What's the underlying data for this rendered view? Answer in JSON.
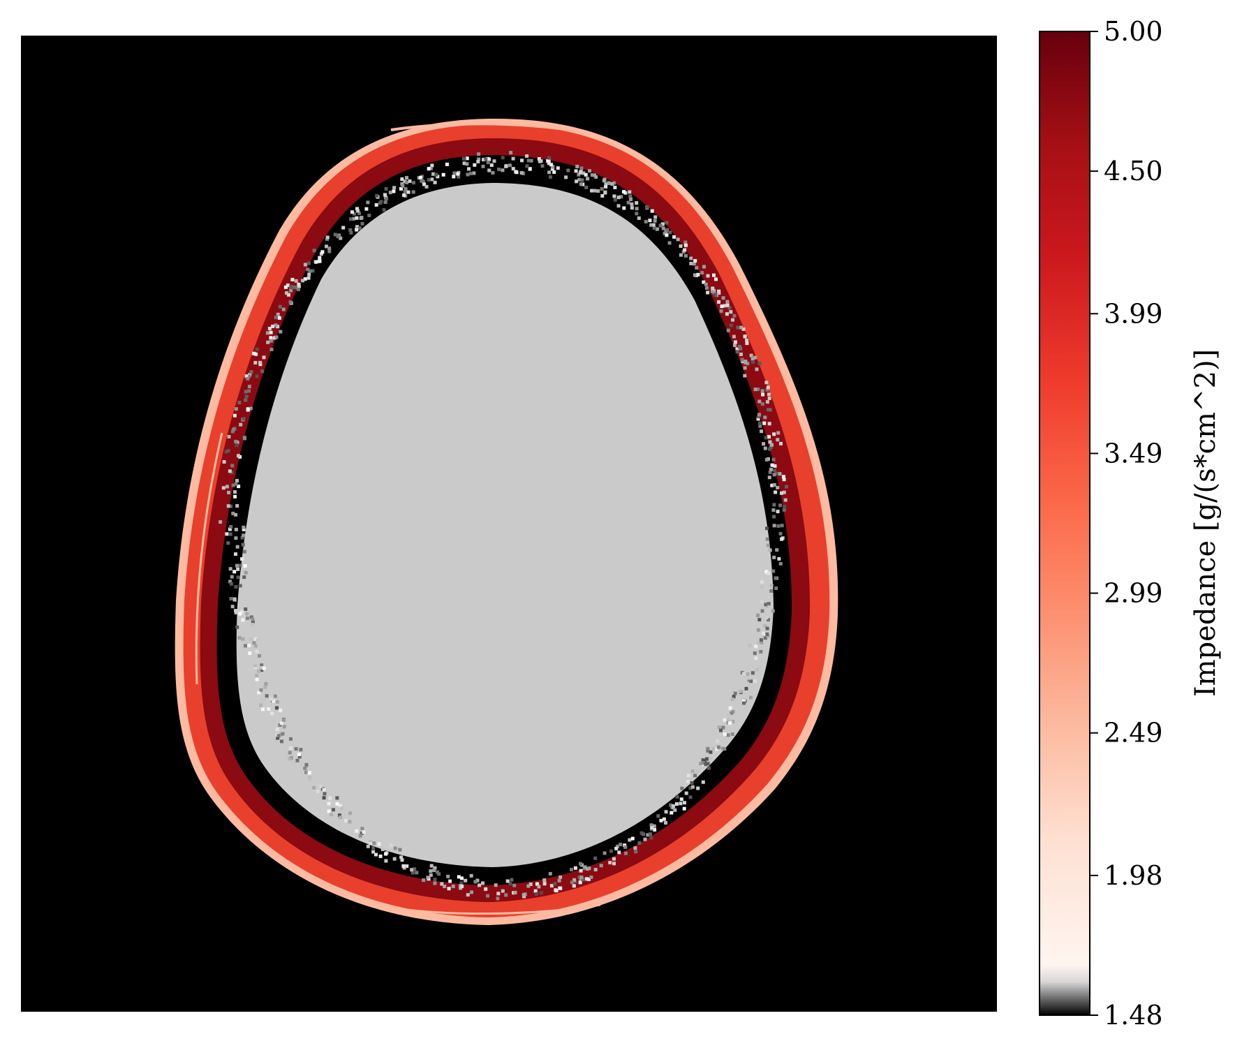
{
  "chart_data": {
    "type": "heatmap",
    "title": "",
    "xlabel": "",
    "ylabel": "",
    "colorbar": {
      "label": "Impedance [g/(s*cm^2)]",
      "range": [
        1.48,
        5.0
      ],
      "ticks": [
        1.48,
        1.98,
        2.49,
        2.99,
        3.49,
        3.99,
        4.5,
        5.0
      ],
      "tick_labels": [
        "1.48",
        "1.98",
        "2.49",
        "2.99",
        "3.49",
        "3.99",
        "4.50",
        "5.00"
      ],
      "colormap": [
        {
          "value": 1.48,
          "color": "#000000"
        },
        {
          "value": 1.6,
          "color": "#d8d8d8"
        },
        {
          "value": 1.66,
          "color": "#fff5f0"
        },
        {
          "value": 2.1,
          "color": "#fee0d2"
        },
        {
          "value": 2.5,
          "color": "#fcbba1"
        },
        {
          "value": 2.9,
          "color": "#fc9272"
        },
        {
          "value": 3.3,
          "color": "#fb6a4a"
        },
        {
          "value": 3.75,
          "color": "#ef3b2c"
        },
        {
          "value": 4.2,
          "color": "#cb181d"
        },
        {
          "value": 4.6,
          "color": "#a50f15"
        },
        {
          "value": 5.0,
          "color": "#67000d"
        }
      ]
    },
    "regions": [
      {
        "name": "background",
        "value": 1.48
      },
      {
        "name": "brain",
        "value": 1.62
      },
      {
        "name": "skull",
        "value_range": [
          2.5,
          5.0
        ]
      }
    ],
    "grid": false,
    "legend": "none",
    "colors": {
      "background": "#000000",
      "brain": "#cacaca",
      "skull_outer": "#e8402c",
      "skull_inner": "#8c0a12",
      "skull_dark": "#6e0610",
      "skull_light": "#fcbba1"
    }
  }
}
